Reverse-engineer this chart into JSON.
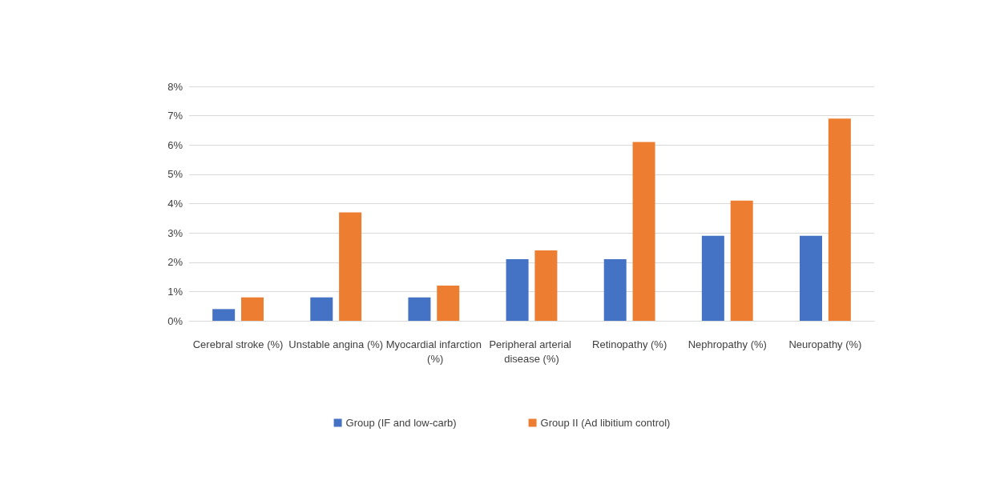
{
  "chart_data": {
    "type": "bar",
    "categories": [
      "Cerebral stroke (%)",
      "Unstable angina (%)",
      "Myocardial infarction (%)",
      "Peripheral arterial disease (%)",
      "Retinopathy (%)",
      "Nephropathy (%)",
      "Neuropathy (%)"
    ],
    "series": [
      {
        "name": "Group (IF and low-carb)",
        "color": "#4472c4",
        "values": [
          0.4,
          0.8,
          0.8,
          2.1,
          2.1,
          2.9,
          2.9
        ]
      },
      {
        "name": "Group II (Ad libitium control)",
        "color": "#ed7d31",
        "values": [
          0.8,
          3.7,
          1.2,
          2.4,
          6.1,
          4.1,
          6.9
        ]
      }
    ],
    "ylim": [
      0,
      8
    ],
    "yticks": [
      {
        "value": 0,
        "label": "0%"
      },
      {
        "value": 1,
        "label": "1%"
      },
      {
        "value": 2,
        "label": "2%"
      },
      {
        "value": 3,
        "label": "3%"
      },
      {
        "value": 4,
        "label": "4%"
      },
      {
        "value": 5,
        "label": "5%"
      },
      {
        "value": 6,
        "label": "6%"
      },
      {
        "value": 7,
        "label": "7%"
      },
      {
        "value": 8,
        "label": "8%"
      }
    ],
    "grid": "y",
    "legend": "bottom"
  }
}
